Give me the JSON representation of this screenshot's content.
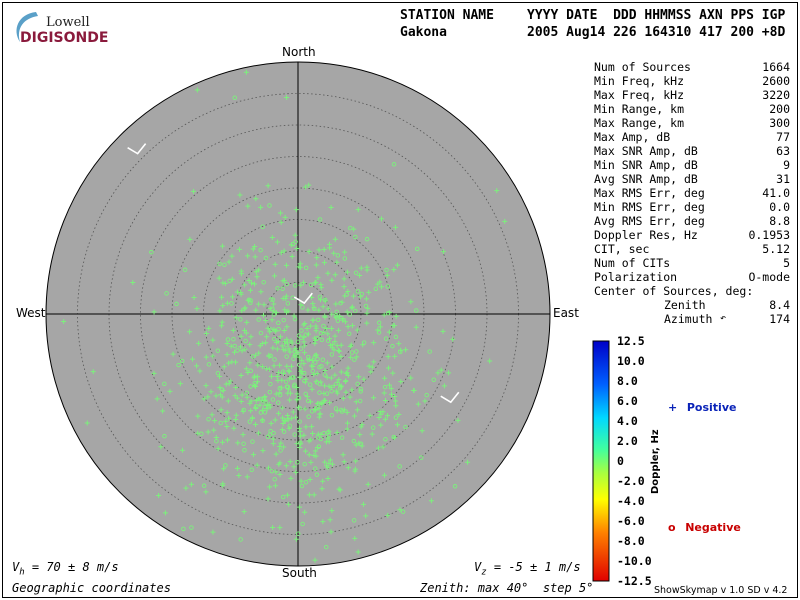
{
  "logo": {
    "top": "Lowell",
    "bottom": "DIGISONDE"
  },
  "header": {
    "station_label": "STATION NAME",
    "station_value": "Gakona",
    "columns_label": "YYYY DATE  DDD HHMMSS AXN PPS IGP",
    "columns_value": "2005 Aug14 226 164310 417 200 +8D"
  },
  "stats": [
    {
      "label": "Num of Sources",
      "value": "1664"
    },
    {
      "label": "Min Freq, kHz",
      "value": "2600"
    },
    {
      "label": "Max Freq, kHz",
      "value": "3220"
    },
    {
      "label": "Min Range, km",
      "value": "200"
    },
    {
      "label": "Max Range, km",
      "value": "300"
    },
    {
      "label": "Max Amp, dB",
      "value": "77"
    },
    {
      "label": "Max SNR Amp, dB",
      "value": "63"
    },
    {
      "label": "Min SNR Amp, dB",
      "value": "9"
    },
    {
      "label": "Avg SNR Amp, dB",
      "value": "31"
    },
    {
      "label": "Max RMS Err, deg",
      "value": "41.0"
    },
    {
      "label": "Min RMS Err, deg",
      "value": "0.0"
    },
    {
      "label": "Avg RMS Err, deg",
      "value": "8.8"
    },
    {
      "label": "Doppler Res, Hz",
      "value": "0.1953"
    },
    {
      "label": "CIT, sec",
      "value": "5.12"
    },
    {
      "label": "Num of CITs",
      "value": "5"
    },
    {
      "label": "Polarization",
      "value": "O-mode"
    }
  ],
  "center": {
    "label": "Center of Sources, deg:",
    "zenith_label": "Zenith",
    "zenith_value": "8.4",
    "azimuth_label": "Azimuth",
    "azimuth_value": "174"
  },
  "chart_data": {
    "type": "scatter",
    "title": "",
    "cardinals": {
      "north": "North",
      "south": "South",
      "east": "East",
      "west": "West"
    },
    "zenith_max_deg": 40,
    "zenith_step_deg": 5,
    "colorbar": {
      "label": "Doppler, Hz",
      "ticks": [
        "12.5",
        "10.0",
        "8.0",
        "6.0",
        "4.0",
        "2.0",
        "0",
        "-2.0",
        "-4.0",
        "-6.0",
        "-8.0",
        "-10.0",
        "-12.5"
      ],
      "range": [
        -12.5,
        12.5
      ]
    },
    "legend": {
      "positive": "Positive",
      "negative": "Negative",
      "positive_marker": "+",
      "negative_marker": "o"
    },
    "colors": {
      "disk": "#a6a6a6",
      "positive": "#0a23b8",
      "negative": "#c80000",
      "source": "#7cf07c"
    },
    "velocity_vectors": [
      {
        "zenith_deg": 36,
        "azimuth_deg": 315
      },
      {
        "zenith_deg": 2,
        "azimuth_deg": 30
      },
      {
        "zenith_deg": 28,
        "azimuth_deg": 120
      }
    ],
    "sources": {
      "count": 1664,
      "center_zenith_deg": 8.4,
      "center_azimuth_deg": 174
    }
  },
  "footer": {
    "vh": "V",
    "vh_sub": "h",
    "vh_rest": " = 70 ± 8 m/s",
    "vz": "V",
    "vz_sub": "z",
    "vz_rest": " = -5 ± 1 m/s",
    "coords": "Geographic coordinates",
    "zenith": "Zenith: max 40°  step 5°",
    "credit": "ShowSkymap v 1.0   SD v 4.2"
  }
}
